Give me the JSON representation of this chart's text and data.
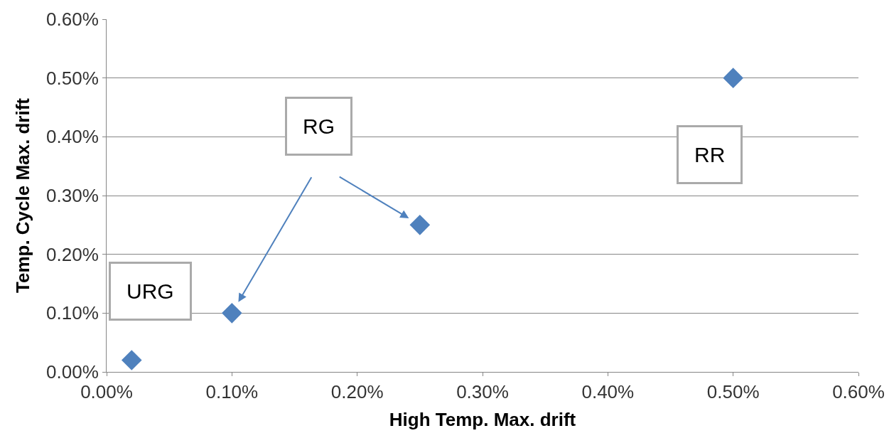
{
  "chart_data": {
    "type": "scatter",
    "xlabel": "High Temp. Max. drift",
    "ylabel": "Temp. Cycle Max. drift",
    "x": [
      0.02,
      0.1,
      0.25,
      0.5
    ],
    "series": [
      {
        "color": "#4f81bd",
        "values": [
          0.02,
          0.1,
          0.25,
          0.5
        ]
      }
    ],
    "marker": "diamond",
    "grid": "y",
    "legend": false,
    "xlim": [
      0,
      0.6
    ],
    "ylim": [
      0,
      0.6
    ],
    "xticks": [
      {
        "value": 0,
        "label": "0.00%"
      },
      {
        "value": 0.1,
        "label": "0.10%"
      },
      {
        "value": 0.2,
        "label": "0.20%"
      },
      {
        "value": 0.3,
        "label": "0.30%"
      },
      {
        "value": 0.4,
        "label": "0.40%"
      },
      {
        "value": 0.5,
        "label": "0.50%"
      },
      {
        "value": 0.6,
        "label": "0.60%"
      }
    ],
    "yticks": [
      {
        "value": 0,
        "label": "0.00%"
      },
      {
        "value": 0.1,
        "label": "0.10%"
      },
      {
        "value": 0.2,
        "label": "0.20%"
      },
      {
        "value": 0.3,
        "label": "0.30%"
      },
      {
        "value": 0.4,
        "label": "0.40%"
      },
      {
        "value": 0.5,
        "label": "0.50%"
      },
      {
        "value": 0.6,
        "label": "0.60%"
      }
    ],
    "annotations": [
      "URG",
      "RG",
      "RR"
    ]
  }
}
